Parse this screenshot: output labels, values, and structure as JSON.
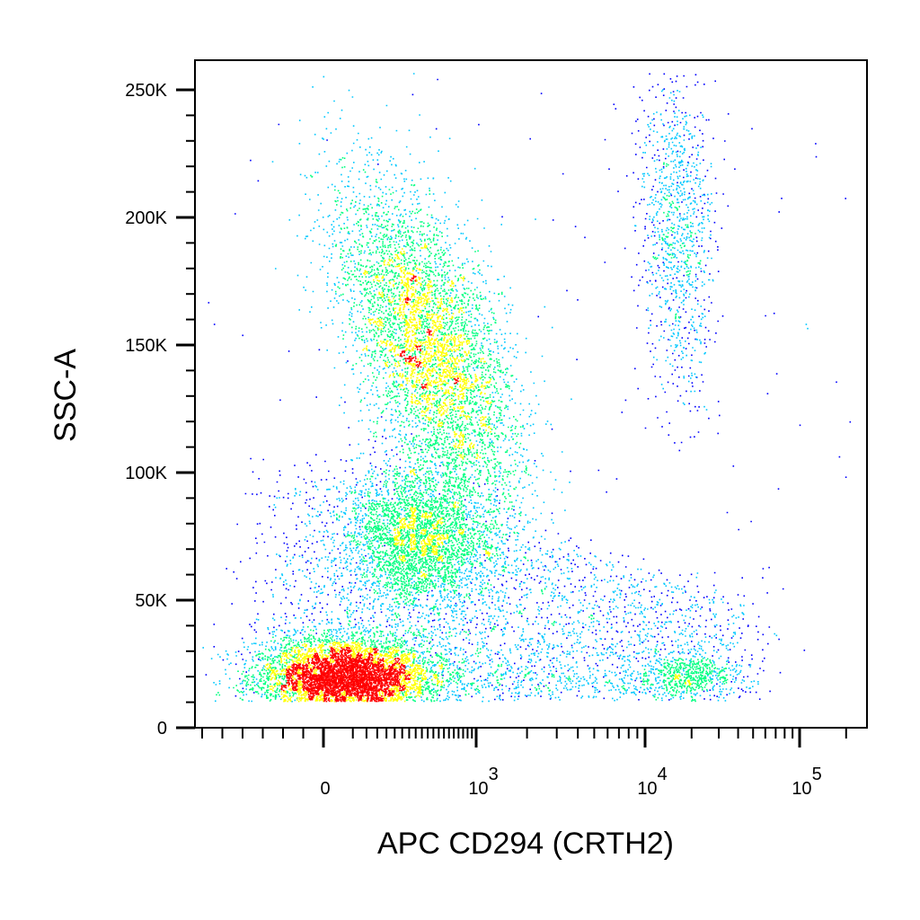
{
  "chart_data": {
    "type": "scatter",
    "subtype": "flow-cytometry density dot plot",
    "xlabel": "APC CD294 (CRTH2)",
    "ylabel": "SSC-A",
    "x_scale": "biexponential",
    "xlim": [
      -300,
      250000
    ],
    "ylim": [
      -5000,
      262144
    ],
    "grid": false,
    "color_map": [
      "#0000ff",
      "#00c8ff",
      "#00ff80",
      "#ffff00",
      "#ff0000"
    ],
    "x_ticks": [
      {
        "label": "0",
        "value": 0
      },
      {
        "base": "10",
        "exp": "3",
        "value": 1000
      },
      {
        "base": "10",
        "exp": "4",
        "value": 10000
      },
      {
        "base": "10",
        "exp": "5",
        "value": 100000
      }
    ],
    "y_ticks": [
      {
        "label": "0",
        "value": 0
      },
      {
        "label": "50K",
        "value": 50000
      },
      {
        "label": "100K",
        "value": 100000
      },
      {
        "label": "150K",
        "value": 150000
      },
      {
        "label": "200K",
        "value": 200000
      },
      {
        "label": "250K",
        "value": 250000
      }
    ],
    "populations": [
      {
        "x_center": 30,
        "y_center": 20000,
        "relative_density": "highest",
        "approx_events": 9000
      },
      {
        "x_center": 500,
        "y_center": 150000,
        "relative_density": "high",
        "approx_events": 11000
      },
      {
        "x_center": 420,
        "y_center": 75000,
        "relative_density": "medium",
        "approx_events": 3500
      },
      {
        "x_center": 16000,
        "y_center": 195000,
        "relative_density": "low",
        "approx_events": 1100
      },
      {
        "x_center": 18000,
        "y_center": 21000,
        "relative_density": "low",
        "approx_events": 350
      }
    ]
  }
}
